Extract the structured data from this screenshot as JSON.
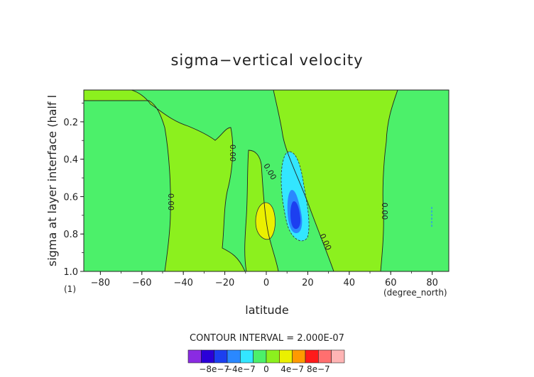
{
  "chart_data": {
    "type": "heatmap",
    "title": "sigma−vertical velocity",
    "xlabel": "latitude",
    "xunits": "(degree_north)",
    "ylabel": "sigma at layer interface (half l",
    "yunits": "(1)",
    "x_ticks": [
      -80,
      -60,
      -40,
      -20,
      0,
      20,
      40,
      60,
      80
    ],
    "x_tick_labels": [
      "−80",
      "−60",
      "−40",
      "−20",
      "0",
      "20",
      "40",
      "60",
      "80"
    ],
    "y_ticks": [
      0.2,
      0.4,
      0.6,
      0.8,
      1.0
    ],
    "y_tick_labels": [
      "0.2",
      "0.4",
      "0.6",
      "0.8",
      "1.0"
    ],
    "xlim": [
      -88,
      88
    ],
    "ylim": [
      1.0,
      0.03
    ],
    "y_inverted": true,
    "contour_interval_text": "CONTOUR INTERVAL = 2.000E-07",
    "contour_label": "0.00",
    "legend": {
      "tick_labels": [
        "−8e−7",
        "−4e−7",
        "0",
        "4e−7",
        "8e−7"
      ],
      "tick_values": [
        -8e-07,
        -4e-07,
        0,
        4e-07,
        8e-07
      ],
      "bins": [
        {
          "from": -1.2e-06,
          "to": -1e-06,
          "color": "#8a2be2"
        },
        {
          "from": -1e-06,
          "to": -8e-07,
          "color": "#2b00d8"
        },
        {
          "from": -8e-07,
          "to": -6e-07,
          "color": "#1c3ff0"
        },
        {
          "from": -6e-07,
          "to": -4e-07,
          "color": "#2a88ff"
        },
        {
          "from": -4e-07,
          "to": -2e-07,
          "color": "#33e6ff"
        },
        {
          "from": -2e-07,
          "to": 0,
          "color": "#4cf06a"
        },
        {
          "from": 0,
          "to": 2e-07,
          "color": "#8cf01e"
        },
        {
          "from": 2e-07,
          "to": 4e-07,
          "color": "#ebf000"
        },
        {
          "from": 4e-07,
          "to": 6e-07,
          "color": "#ff9a00"
        },
        {
          "from": 6e-07,
          "to": 8e-07,
          "color": "#ff1a1a"
        },
        {
          "from": 8e-07,
          "to": 1e-06,
          "color": "#ff6f6f"
        },
        {
          "from": 1e-06,
          "to": 1.2e-06,
          "color": "#ffb4b4"
        }
      ]
    },
    "regions": [
      {
        "name": "background-negative",
        "range": [
          -2e-07,
          0
        ],
        "color": "#4cf06a"
      },
      {
        "name": "upwelling-equator",
        "range": [
          2e-07,
          4e-07
        ],
        "color": "#ebf000",
        "center": [
          -1,
          0.74
        ]
      },
      {
        "name": "downwelling-cyan",
        "range": [
          -4e-07,
          -2e-07
        ],
        "color": "#33e6ff",
        "center": [
          12,
          0.6
        ]
      },
      {
        "name": "downwelling-blue",
        "range": [
          -6e-07,
          -4e-07
        ],
        "color": "#2a88ff",
        "center": [
          13,
          0.68
        ]
      },
      {
        "name": "downwelling-core",
        "range": [
          -8e-07,
          -6e-07
        ],
        "color": "#1c3ff0",
        "center": [
          13.5,
          0.72
        ]
      }
    ]
  }
}
